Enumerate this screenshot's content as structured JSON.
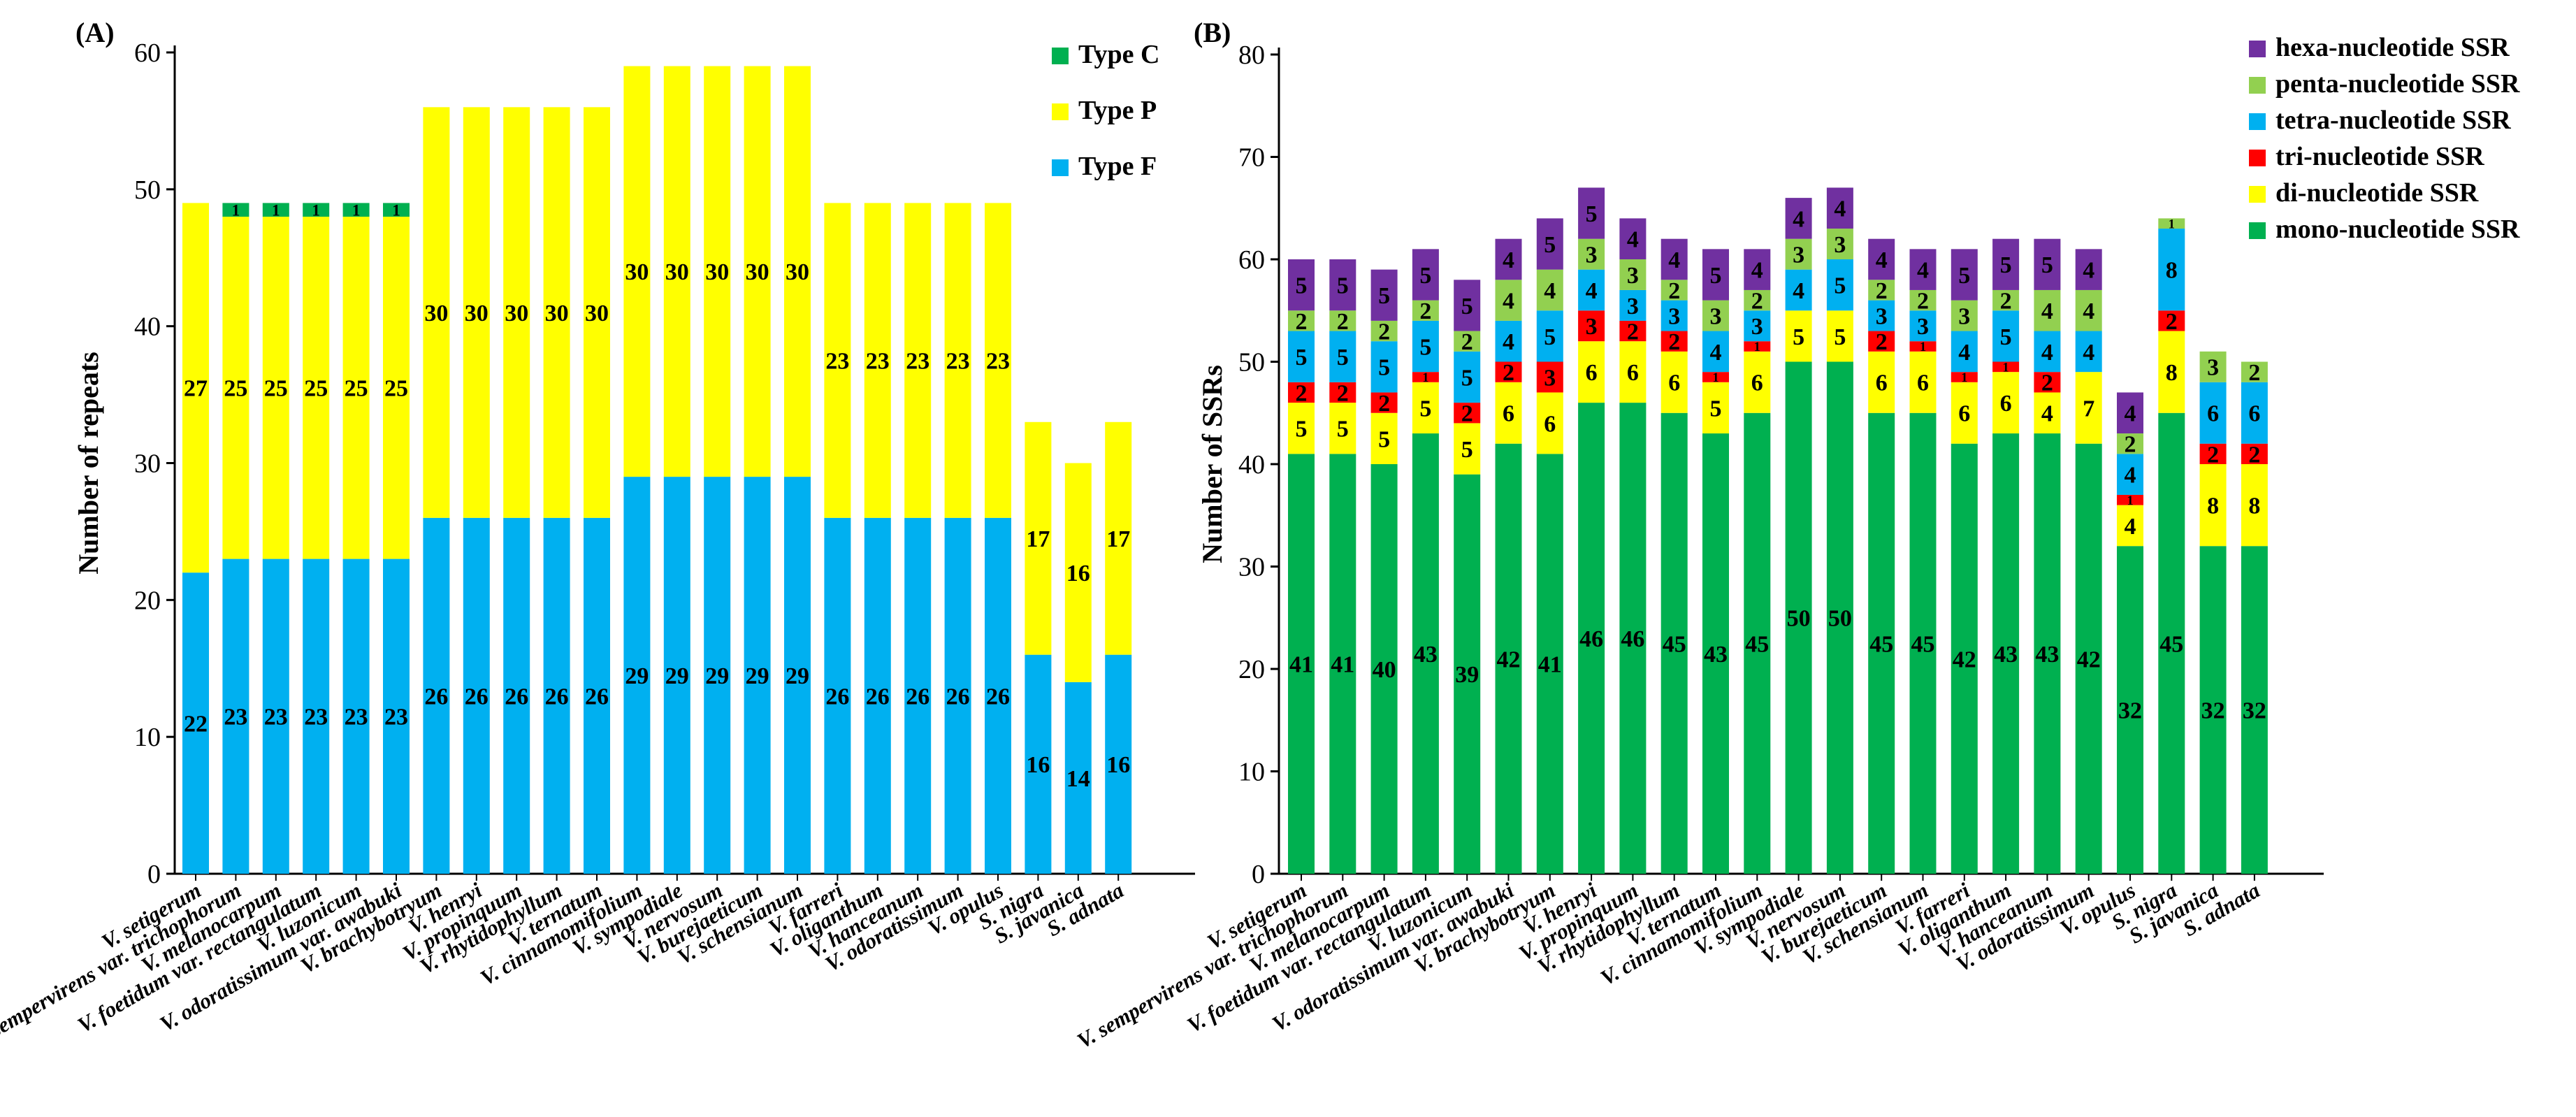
{
  "colors": {
    "type_f": "#00B0F0",
    "type_p": "#FFFF00",
    "type_c": "#00B050",
    "mono": "#00B050",
    "di": "#FFFF00",
    "tri": "#FF0000",
    "tetra": "#00B0F0",
    "penta": "#92D050",
    "hexa": "#7030A0"
  },
  "chart_data": [
    {
      "panel_label": "(A)",
      "type": "bar",
      "stacked": true,
      "ylabel": "Number of repeats",
      "xlabel": "",
      "ylim": [
        0,
        60
      ],
      "yticks": [
        0,
        10,
        20,
        30,
        40,
        50,
        60
      ],
      "legend_position": "top-right",
      "categories": [
        "V. setigerum",
        "V. sempervirens var. trichophorum",
        "V. melanocarpum",
        "V. foetidum var. rectangulatum",
        "V. luzonicum",
        "V. odoratissimum var. awabuki",
        "V. brachybotryum",
        "V. henryi",
        "V. propinquum",
        "V. rhytidophyllum",
        "V. ternatum",
        "V. cinnamomifolium",
        "V. sympodiale",
        "V. nervosum",
        "V. burejaeticum",
        "V. schensianum",
        "V. farreri",
        "V. oliganthum",
        "V. hanceanum",
        "V. odoratissimum",
        "V. opulus",
        "S. nigra",
        "S. javanica",
        "S. adnata"
      ],
      "series": [
        {
          "name": "Type F",
          "color_key": "type_f",
          "values": [
            22,
            23,
            23,
            23,
            23,
            23,
            26,
            26,
            26,
            26,
            26,
            29,
            29,
            29,
            29,
            29,
            26,
            26,
            26,
            26,
            26,
            16,
            14,
            16
          ]
        },
        {
          "name": "Type P",
          "color_key": "type_p",
          "values": [
            27,
            25,
            25,
            25,
            25,
            25,
            30,
            30,
            30,
            30,
            30,
            30,
            30,
            30,
            30,
            30,
            23,
            23,
            23,
            23,
            23,
            17,
            16,
            17
          ]
        },
        {
          "name": "Type C",
          "color_key": "type_c",
          "values": [
            0,
            1,
            1,
            1,
            1,
            1,
            0,
            0,
            0,
            0,
            0,
            0,
            0,
            0,
            0,
            0,
            0,
            0,
            0,
            0,
            0,
            0,
            0,
            0
          ]
        }
      ],
      "legend_order": [
        "Type C",
        "Type P",
        "Type F"
      ]
    },
    {
      "panel_label": "(B)",
      "type": "bar",
      "stacked": true,
      "ylabel": "Number of SSRs",
      "xlabel": "",
      "ylim": [
        0,
        80
      ],
      "yticks": [
        0,
        10,
        20,
        30,
        40,
        50,
        60,
        70,
        80
      ],
      "legend_position": "top-right",
      "categories": [
        "V. setigerum",
        "V. sempervirens var. trichophorum",
        "V. melanocarpum",
        "V. foetidum var. rectangulatum",
        "V. luzonicum",
        "V. odoratissimum var. awabuki",
        "V. brachybotryum",
        "V. henryi",
        "V. propinquum",
        "V. rhytidophyllum",
        "V. ternatum",
        "V. cinnamomifolium",
        "V. sympodiale",
        "V. nervosum",
        "V. burejaeticum",
        "V. schensianum",
        "V. farreri",
        "V. oliganthum",
        "V. hanceanum",
        "V. odoratissimum",
        "V. opulus",
        "S. nigra",
        "S. javanica",
        "S. adnata"
      ],
      "series": [
        {
          "name": "mono-nucleotide SSR",
          "color_key": "mono",
          "values": [
            41,
            41,
            40,
            43,
            39,
            42,
            41,
            46,
            46,
            45,
            43,
            45,
            50,
            50,
            45,
            45,
            42,
            43,
            43,
            42,
            32,
            45,
            32,
            32
          ]
        },
        {
          "name": "di-nucleotide SSR",
          "color_key": "di",
          "values": [
            5,
            5,
            5,
            5,
            5,
            6,
            6,
            6,
            6,
            6,
            5,
            6,
            5,
            5,
            6,
            6,
            6,
            6,
            4,
            7,
            4,
            8,
            8,
            8
          ]
        },
        {
          "name": "tri-nucleotide SSR",
          "color_key": "tri",
          "values": [
            2,
            2,
            2,
            1,
            2,
            2,
            3,
            3,
            2,
            2,
            1,
            1,
            0,
            0,
            2,
            1,
            1,
            1,
            2,
            0,
            1,
            2,
            2,
            2
          ]
        },
        {
          "name": "tetra-nucleotide SSR",
          "color_key": "tetra",
          "values": [
            5,
            5,
            5,
            5,
            5,
            4,
            5,
            4,
            3,
            3,
            4,
            3,
            4,
            5,
            3,
            3,
            4,
            5,
            4,
            4,
            4,
            8,
            6,
            6
          ]
        },
        {
          "name": "penta-nucleotide SSR",
          "color_key": "penta",
          "values": [
            2,
            2,
            2,
            2,
            2,
            4,
            4,
            3,
            3,
            2,
            3,
            2,
            3,
            3,
            2,
            2,
            3,
            2,
            4,
            4,
            2,
            1,
            3,
            2
          ]
        },
        {
          "name": "hexa-nucleotide SSR",
          "color_key": "hexa",
          "values": [
            5,
            5,
            5,
            5,
            5,
            4,
            5,
            5,
            4,
            4,
            5,
            4,
            4,
            4,
            4,
            4,
            5,
            5,
            5,
            4,
            4,
            0,
            0,
            0
          ]
        }
      ],
      "legend_order": [
        "hexa-nucleotide SSR",
        "penta-nucleotide SSR",
        "tetra-nucleotide SSR",
        "tri-nucleotide SSR",
        "di-nucleotide SSR",
        "mono-nucleotide SSR"
      ]
    }
  ]
}
